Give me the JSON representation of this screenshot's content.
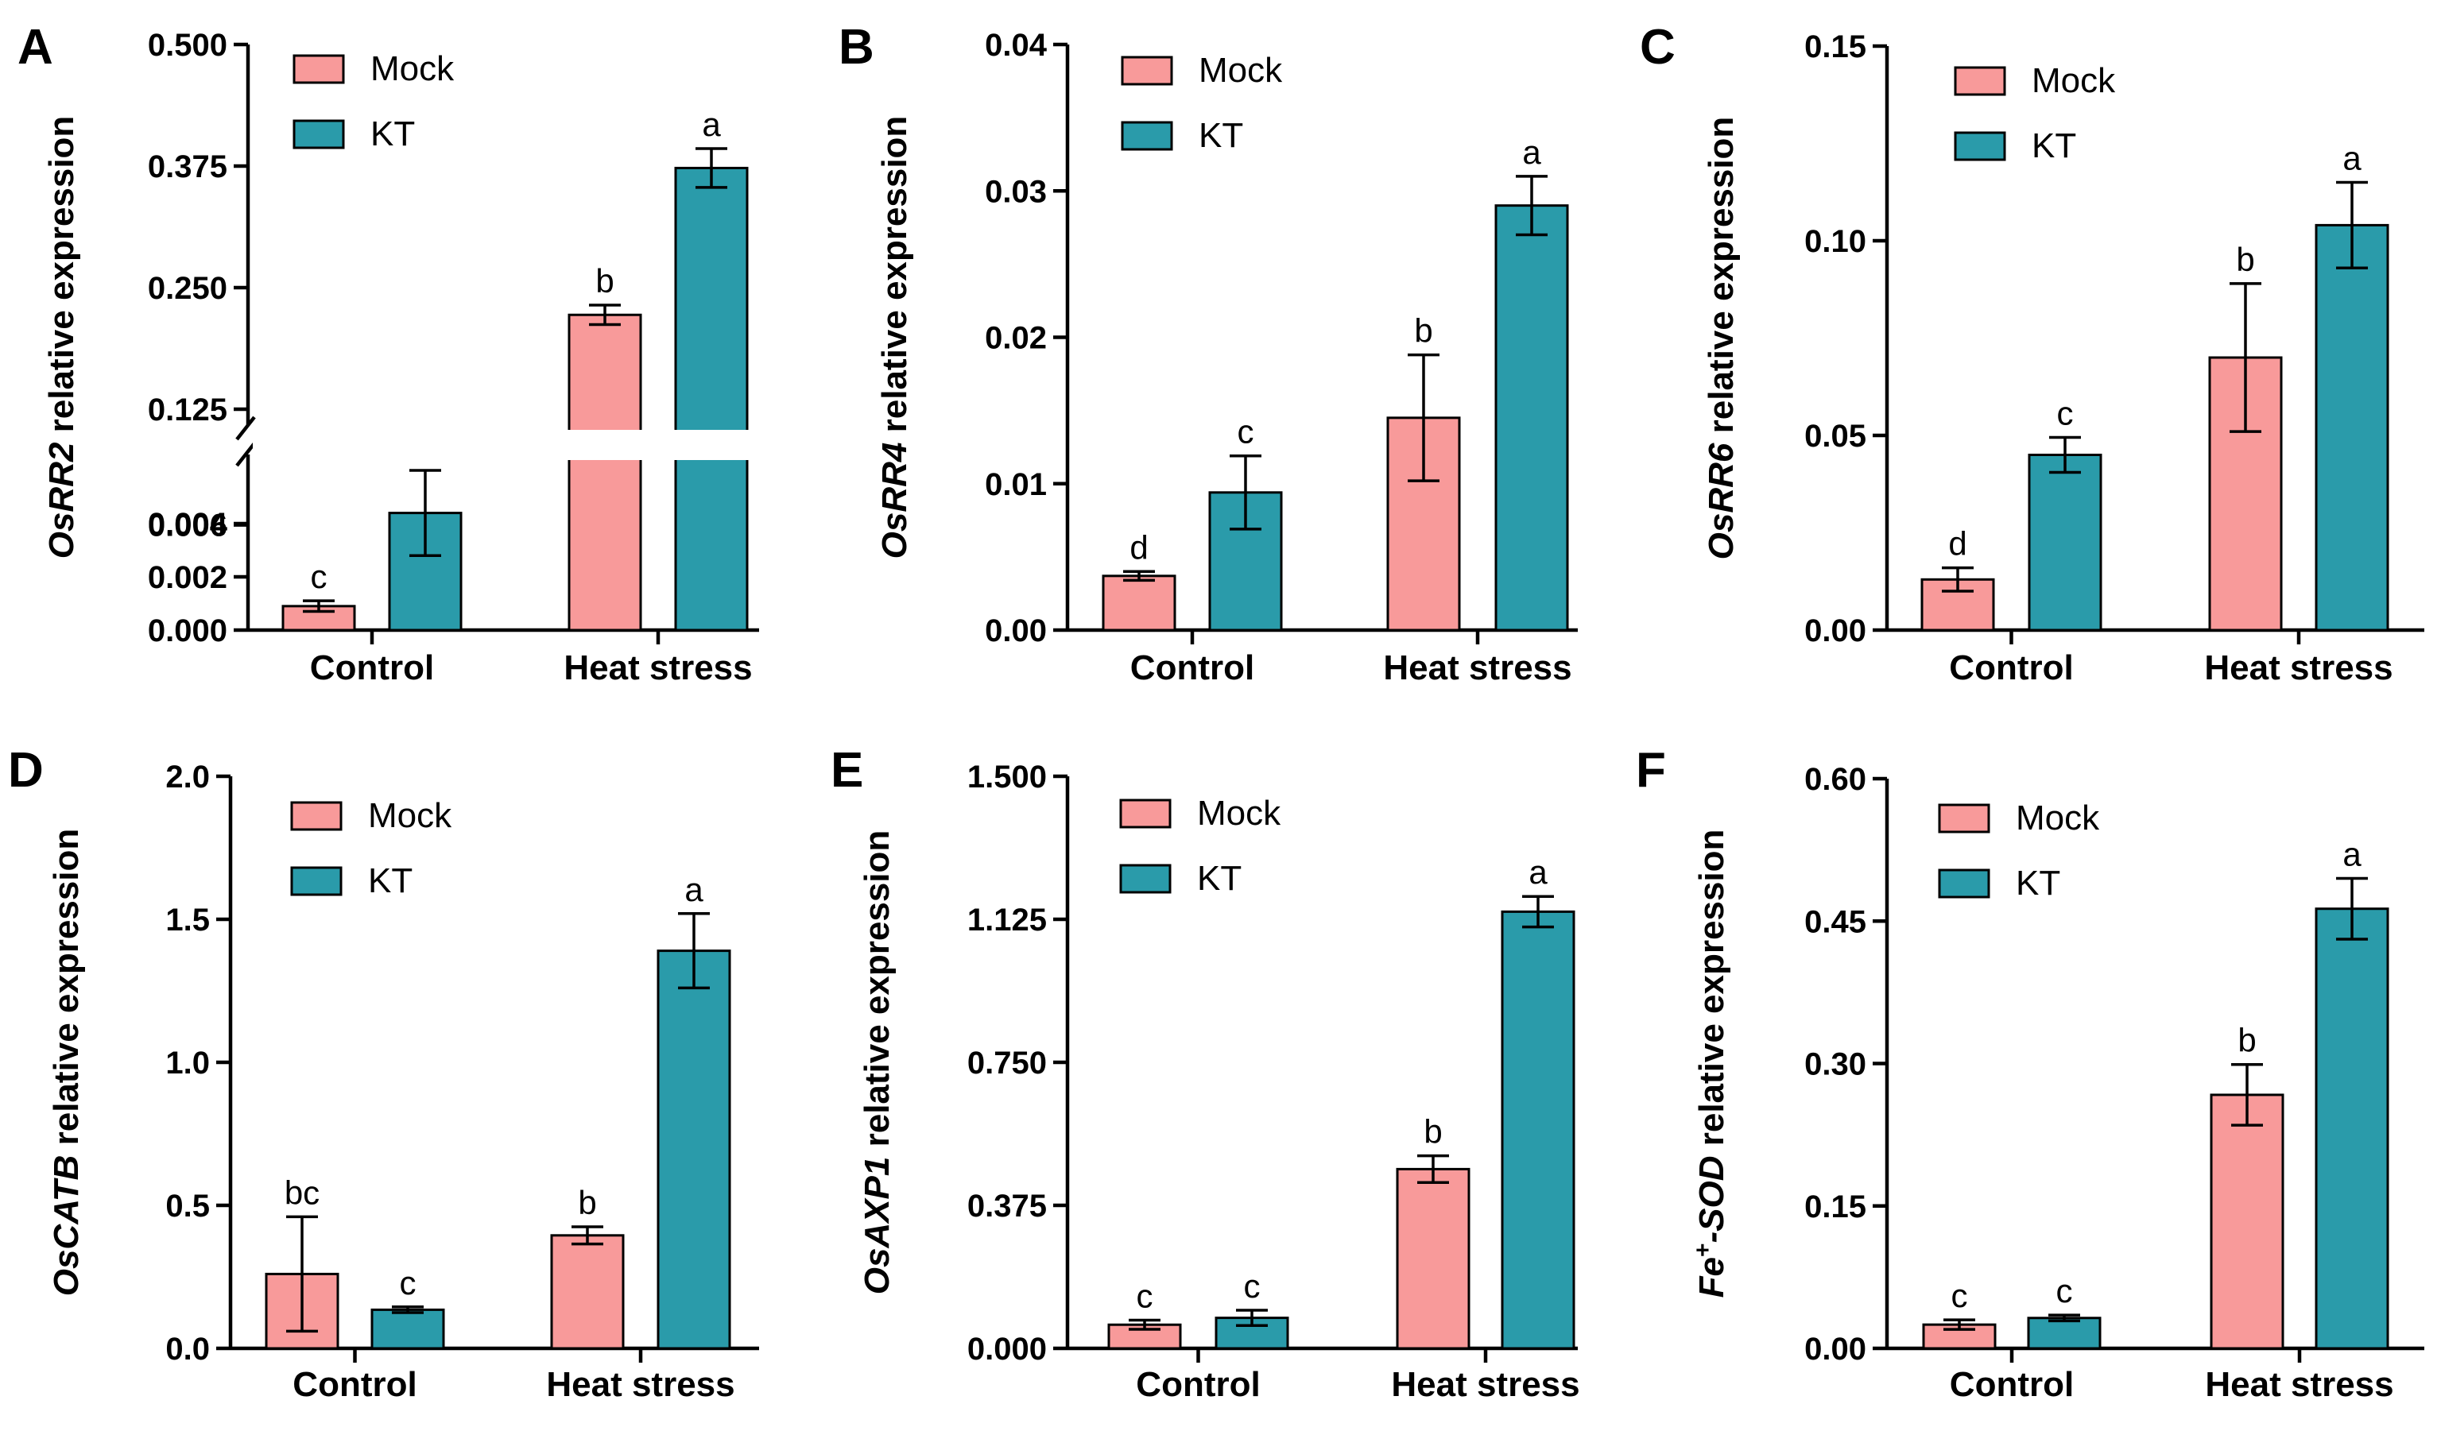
{
  "colors": {
    "mock": "#F89A9A",
    "kt": "#2A9BAA"
  },
  "chart_data": [
    {
      "panel": "A",
      "type": "bar",
      "categories": [
        "Control",
        "Heat stress"
      ],
      "ylabel_gene": "OsRR2",
      "ylabel_suffix": " relative expression",
      "legend": [
        "Mock",
        "KT"
      ],
      "axis_break": true,
      "lower_ylim": [
        0,
        0.006
      ],
      "lower_ticks": [
        "0.000",
        "0.002",
        "0.004",
        "0.006"
      ],
      "upper_ylim": [
        0.125,
        0.5
      ],
      "upper_ticks": [
        "0.125",
        "0.250",
        "0.375",
        "0.500"
      ],
      "series": [
        {
          "name": "Mock",
          "values": [
            0.0009,
            0.222
          ],
          "errors": [
            0.0002,
            0.01
          ],
          "letters": [
            "c",
            "b"
          ]
        },
        {
          "name": "KT",
          "values": [
            0.0044,
            0.373
          ],
          "errors": [
            0.0016,
            0.02
          ],
          "letters": [
            "c",
            "a"
          ]
        }
      ]
    },
    {
      "panel": "B",
      "type": "bar",
      "categories": [
        "Control",
        "Heat stress"
      ],
      "ylabel_gene": "OsRR4",
      "ylabel_suffix": " relative expression",
      "legend": [
        "Mock",
        "KT"
      ],
      "ylim": [
        0,
        0.04
      ],
      "ticks": [
        "0.00",
        "0.01",
        "0.02",
        "0.03",
        "0.04"
      ],
      "series": [
        {
          "name": "Mock",
          "values": [
            0.0037,
            0.0145
          ],
          "errors": [
            0.0003,
            0.0043
          ],
          "letters": [
            "d",
            "b"
          ]
        },
        {
          "name": "KT",
          "values": [
            0.0094,
            0.029
          ],
          "errors": [
            0.0025,
            0.002
          ],
          "letters": [
            "c",
            "a"
          ]
        }
      ]
    },
    {
      "panel": "C",
      "type": "bar",
      "categories": [
        "Control",
        "Heat stress"
      ],
      "ylabel_gene": "OsRR6",
      "ylabel_suffix": " relative expression",
      "legend": [
        "Mock",
        "KT"
      ],
      "ylim": [
        0,
        0.15
      ],
      "ticks": [
        "0.00",
        "0.05",
        "0.10",
        "0.15"
      ],
      "series": [
        {
          "name": "Mock",
          "values": [
            0.013,
            0.07
          ],
          "errors": [
            0.003,
            0.019
          ],
          "letters": [
            "d",
            "b"
          ]
        },
        {
          "name": "KT",
          "values": [
            0.045,
            0.104
          ],
          "errors": [
            0.0045,
            0.011
          ],
          "letters": [
            "c",
            "a"
          ]
        }
      ]
    },
    {
      "panel": "D",
      "type": "bar",
      "categories": [
        "Control",
        "Heat stress"
      ],
      "ylabel_gene": "OsCATB",
      "ylabel_suffix": " relative expression",
      "legend": [
        "Mock",
        "KT"
      ],
      "ylim": [
        0,
        2.0
      ],
      "ticks": [
        "0.0",
        "0.5",
        "1.0",
        "1.5",
        "2.0"
      ],
      "series": [
        {
          "name": "Mock",
          "values": [
            0.26,
            0.395
          ],
          "errors": [
            0.2,
            0.03
          ],
          "letters": [
            "bc",
            "b"
          ]
        },
        {
          "name": "KT",
          "values": [
            0.135,
            1.39
          ],
          "errors": [
            0.01,
            0.13
          ],
          "letters": [
            "c",
            "a"
          ]
        }
      ]
    },
    {
      "panel": "E",
      "type": "bar",
      "categories": [
        "Control",
        "Heat stress"
      ],
      "ylabel_gene": "OsAXP1",
      "ylabel_suffix": " relative expression",
      "legend": [
        "Mock",
        "KT"
      ],
      "ylim": [
        0,
        1.5
      ],
      "ticks": [
        "0.000",
        "0.375",
        "0.750",
        "1.125",
        "1.500"
      ],
      "series": [
        {
          "name": "Mock",
          "values": [
            0.062,
            0.47
          ],
          "errors": [
            0.012,
            0.035
          ],
          "letters": [
            "c",
            "b"
          ]
        },
        {
          "name": "KT",
          "values": [
            0.08,
            1.145
          ],
          "errors": [
            0.02,
            0.04
          ],
          "letters": [
            "c",
            "a"
          ]
        }
      ]
    },
    {
      "panel": "F",
      "type": "bar",
      "categories": [
        "Control",
        "Heat stress"
      ],
      "ylabel_gene": "Fe",
      "ylabel_sup": "+",
      "ylabel_gene2": "-SOD",
      "ylabel_suffix": " relative expression",
      "legend": [
        "Mock",
        "KT"
      ],
      "ylim": [
        0,
        0.6
      ],
      "ticks": [
        "0.00",
        "0.15",
        "0.30",
        "0.45",
        "0.60"
      ],
      "series": [
        {
          "name": "Mock",
          "values": [
            0.025,
            0.267
          ],
          "errors": [
            0.005,
            0.032
          ],
          "letters": [
            "c",
            "b"
          ]
        },
        {
          "name": "KT",
          "values": [
            0.032,
            0.463
          ],
          "errors": [
            0.003,
            0.032
          ],
          "letters": [
            "c",
            "a"
          ]
        }
      ]
    }
  ]
}
